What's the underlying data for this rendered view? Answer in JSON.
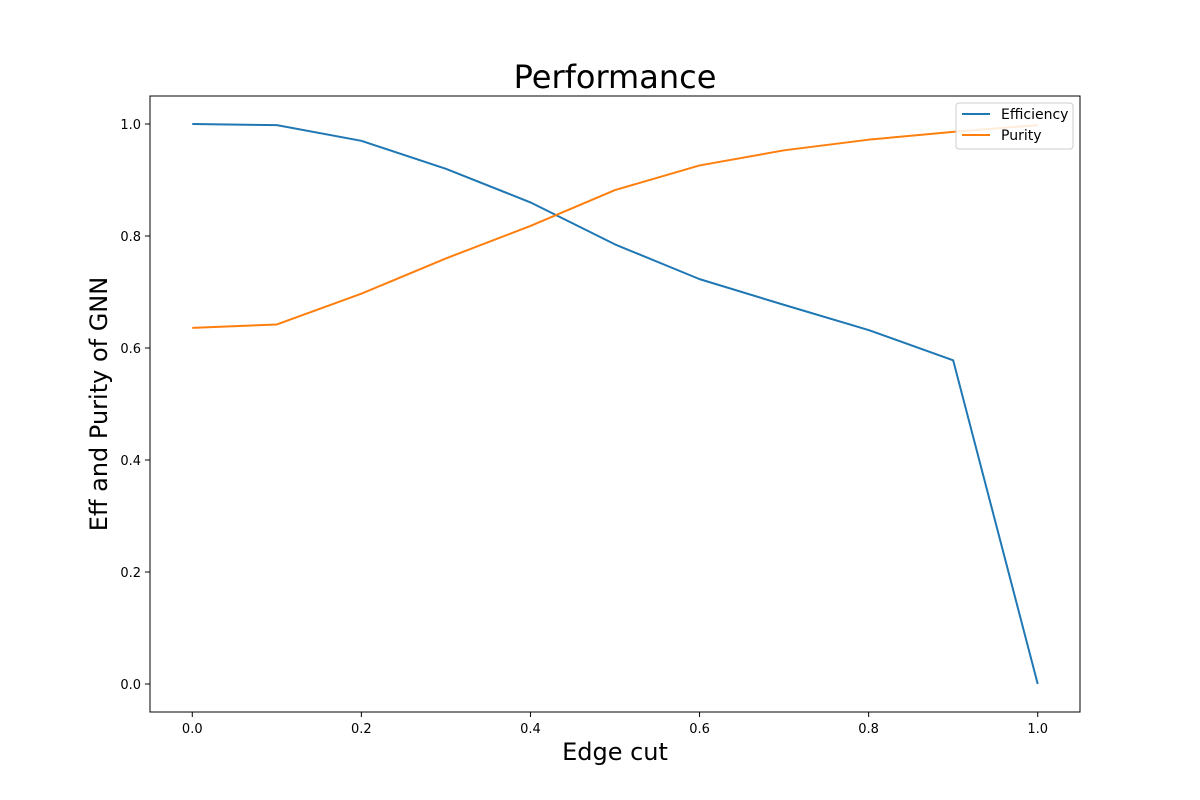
{
  "chart_data": {
    "type": "line",
    "title": "Performance",
    "xlabel": "Edge cut",
    "ylabel": "Eff and Purity of GNN",
    "x": [
      0.0,
      0.1,
      0.2,
      0.3,
      0.4,
      0.5,
      0.6,
      0.7,
      0.8,
      0.9,
      1.0
    ],
    "series": [
      {
        "name": "Efficiency",
        "color": "#1f77b4",
        "values": [
          1.0,
          0.998,
          0.97,
          0.92,
          0.86,
          0.785,
          0.723,
          0.677,
          0.632,
          0.578,
          0.0
        ]
      },
      {
        "name": "Purity",
        "color": "#ff7f0e",
        "values": [
          0.636,
          0.642,
          0.697,
          0.76,
          0.818,
          0.882,
          0.926,
          0.953,
          0.972,
          0.986,
          0.998
        ]
      }
    ],
    "xlim": [
      -0.05,
      1.05
    ],
    "ylim": [
      -0.05,
      1.05
    ],
    "xticks": [
      0.0,
      0.2,
      0.4,
      0.6,
      0.8,
      1.0
    ],
    "xtick_labels": [
      "0.0",
      "0.2",
      "0.4",
      "0.6",
      "0.8",
      "1.0"
    ],
    "yticks": [
      0.0,
      0.2,
      0.4,
      0.6,
      0.8,
      1.0
    ],
    "ytick_labels": [
      "0.0",
      "0.2",
      "0.4",
      "0.6",
      "0.8",
      "1.0"
    ],
    "grid": false,
    "legend_position": "top-right"
  }
}
